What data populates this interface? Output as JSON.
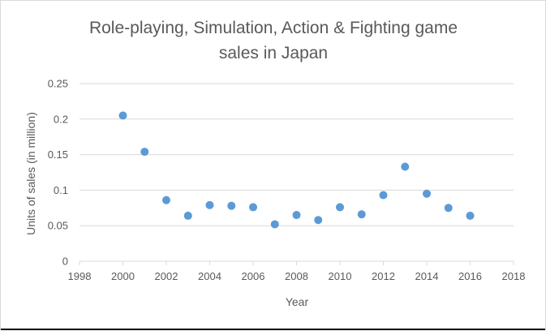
{
  "chart_data": {
    "type": "scatter",
    "title_lines": [
      "Role-playing, Simulation, Action & Fighting game",
      "sales in Japan"
    ],
    "xlabel": "Year",
    "ylabel": "Units of sales (in million)",
    "xlim": [
      1998,
      2018
    ],
    "ylim": [
      0,
      0.25
    ],
    "x_ticks": [
      "1998",
      "2000",
      "2002",
      "2004",
      "2006",
      "2008",
      "2010",
      "2012",
      "2014",
      "2016",
      "2018"
    ],
    "y_ticks": [
      "0",
      "0.05",
      "0.1",
      "0.15",
      "0.2",
      "0.25"
    ],
    "grid": true,
    "legend": "none",
    "marker_color": "#5b9bd5",
    "points": [
      {
        "x": 2000,
        "y": 0.205
      },
      {
        "x": 2001,
        "y": 0.154
      },
      {
        "x": 2002,
        "y": 0.086
      },
      {
        "x": 2003,
        "y": 0.064
      },
      {
        "x": 2004,
        "y": 0.079
      },
      {
        "x": 2005,
        "y": 0.078
      },
      {
        "x": 2006,
        "y": 0.076
      },
      {
        "x": 2007,
        "y": 0.052
      },
      {
        "x": 2008,
        "y": 0.065
      },
      {
        "x": 2009,
        "y": 0.058
      },
      {
        "x": 2010,
        "y": 0.076
      },
      {
        "x": 2011,
        "y": 0.066
      },
      {
        "x": 2012,
        "y": 0.093
      },
      {
        "x": 2013,
        "y": 0.133
      },
      {
        "x": 2014,
        "y": 0.095
      },
      {
        "x": 2015,
        "y": 0.075
      },
      {
        "x": 2016,
        "y": 0.064
      }
    ]
  }
}
